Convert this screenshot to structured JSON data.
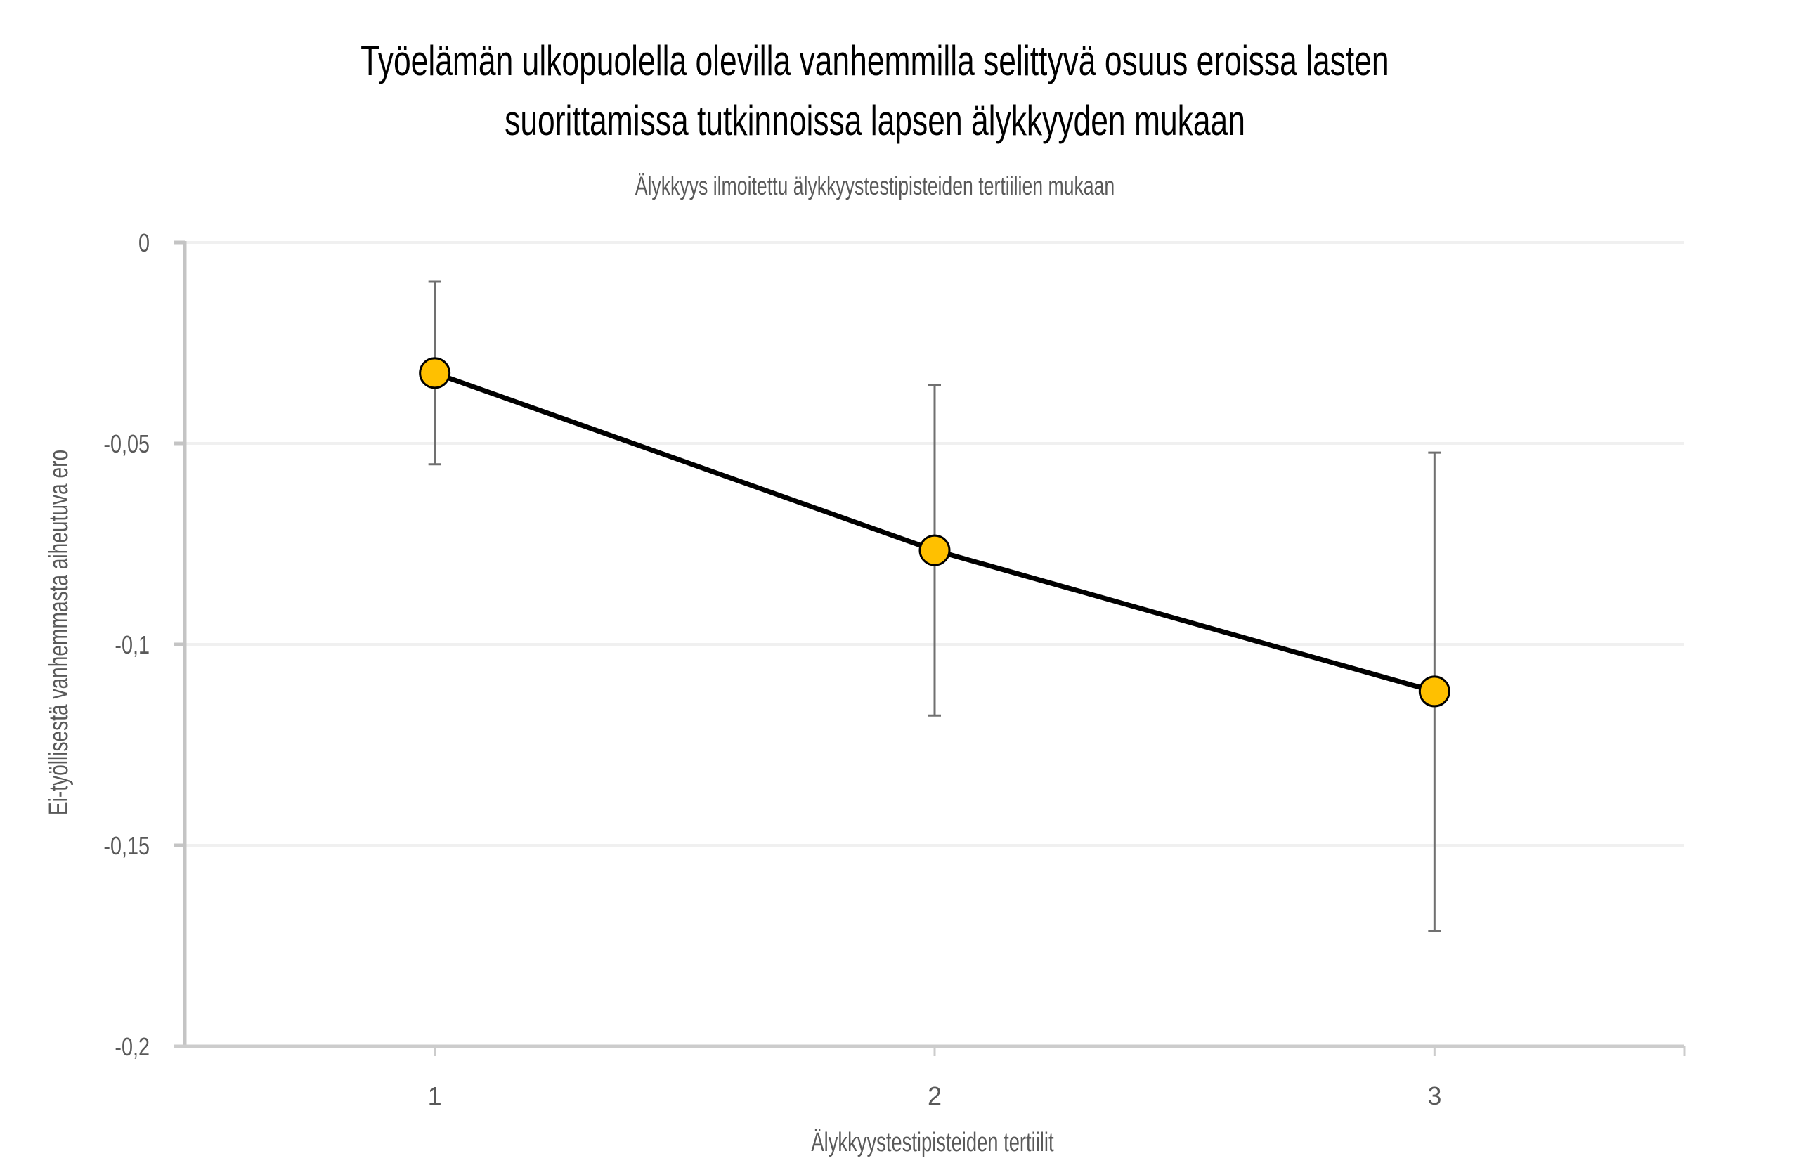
{
  "chart": {
    "title_line1": "Työelämän ulkopuolella olevilla vanhemmilla selittyvä osuus eroissa lasten",
    "title_line2": "suorittamissa tutkinnoissa lapsen älykkyyden mukaan",
    "subtitle": "Älykkyys ilmoitettu älykkyystestipisteiden tertiilien mukaan",
    "xlabel": "Älykkyystestipisteiden tertiilit",
    "ylabel": "Ei-työllisestä vanhemmasta aiheutuva ero",
    "colors": {
      "marker_fill": "#FFC000",
      "marker_stroke": "#000000",
      "line": "#000000",
      "error_bar": "#707070",
      "gridline": "#F0F0F0",
      "axis": "#C4C4C4",
      "label_text": "#595959"
    }
  },
  "chart_data": {
    "type": "line",
    "title": "Työelämän ulkopuolella olevilla vanhemmilla selittyvä osuus eroissa lasten suorittamissa tutkinnoissa lapsen älykkyyden mukaan",
    "subtitle": "Älykkyys ilmoitettu älykkyystestipisteiden tertiilien mukaan",
    "xlabel": "Älykkyystestipisteiden tertiilit",
    "ylabel": "Ei-työllisestä vanhemmasta aiheutuva ero",
    "categories": [
      "1",
      "2",
      "3"
    ],
    "series": [
      {
        "name": "Ei-työllisestä vanhemmasta aiheutuva ero",
        "values": [
          -0.0325,
          -0.0766,
          -0.1117
        ],
        "error_upper": [
          -0.0098,
          -0.0355,
          -0.0523
        ],
        "error_lower": [
          -0.0552,
          -0.1177,
          -0.1713
        ]
      }
    ],
    "ylim": [
      -0.2,
      0
    ],
    "yticks": [
      0,
      -0.05,
      -0.1,
      -0.15,
      -0.2
    ],
    "ytick_labels": [
      "0",
      "-0,05",
      "-0,1",
      "-0,15",
      "-0,2"
    ],
    "grid": true,
    "legend": null
  }
}
